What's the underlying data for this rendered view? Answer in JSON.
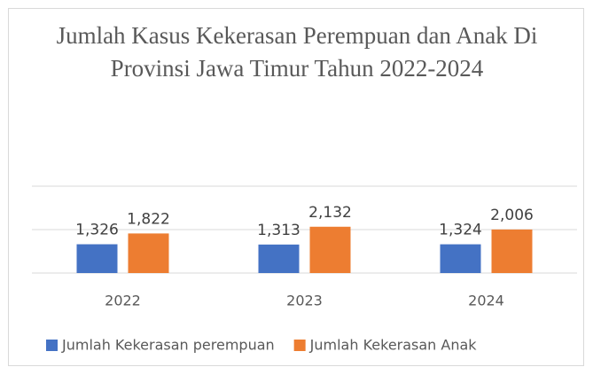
{
  "chart_data": {
    "type": "bar",
    "title": "Jumlah Kasus Kekerasan Perempuan dan Anak Di Provinsi Jawa Timur Tahun 2022-2024",
    "categories": [
      "2022",
      "2023",
      "2024"
    ],
    "series": [
      {
        "name": "Jumlah Kekerasan perempuan",
        "color": "#4472c4",
        "values": [
          1326,
          1313,
          1324
        ],
        "value_labels": [
          "1,326",
          "1,313",
          "1,324"
        ]
      },
      {
        "name": "Jumlah Kekerasan Anak",
        "color": "#ed7d31",
        "values": [
          1822,
          2132,
          2006
        ],
        "value_labels": [
          "1,822",
          "2,132",
          "2,006"
        ]
      }
    ],
    "ylim": [
      0,
      4000
    ],
    "yticks": [
      0,
      2000,
      4000
    ],
    "grid": true,
    "legend": "bottom"
  }
}
